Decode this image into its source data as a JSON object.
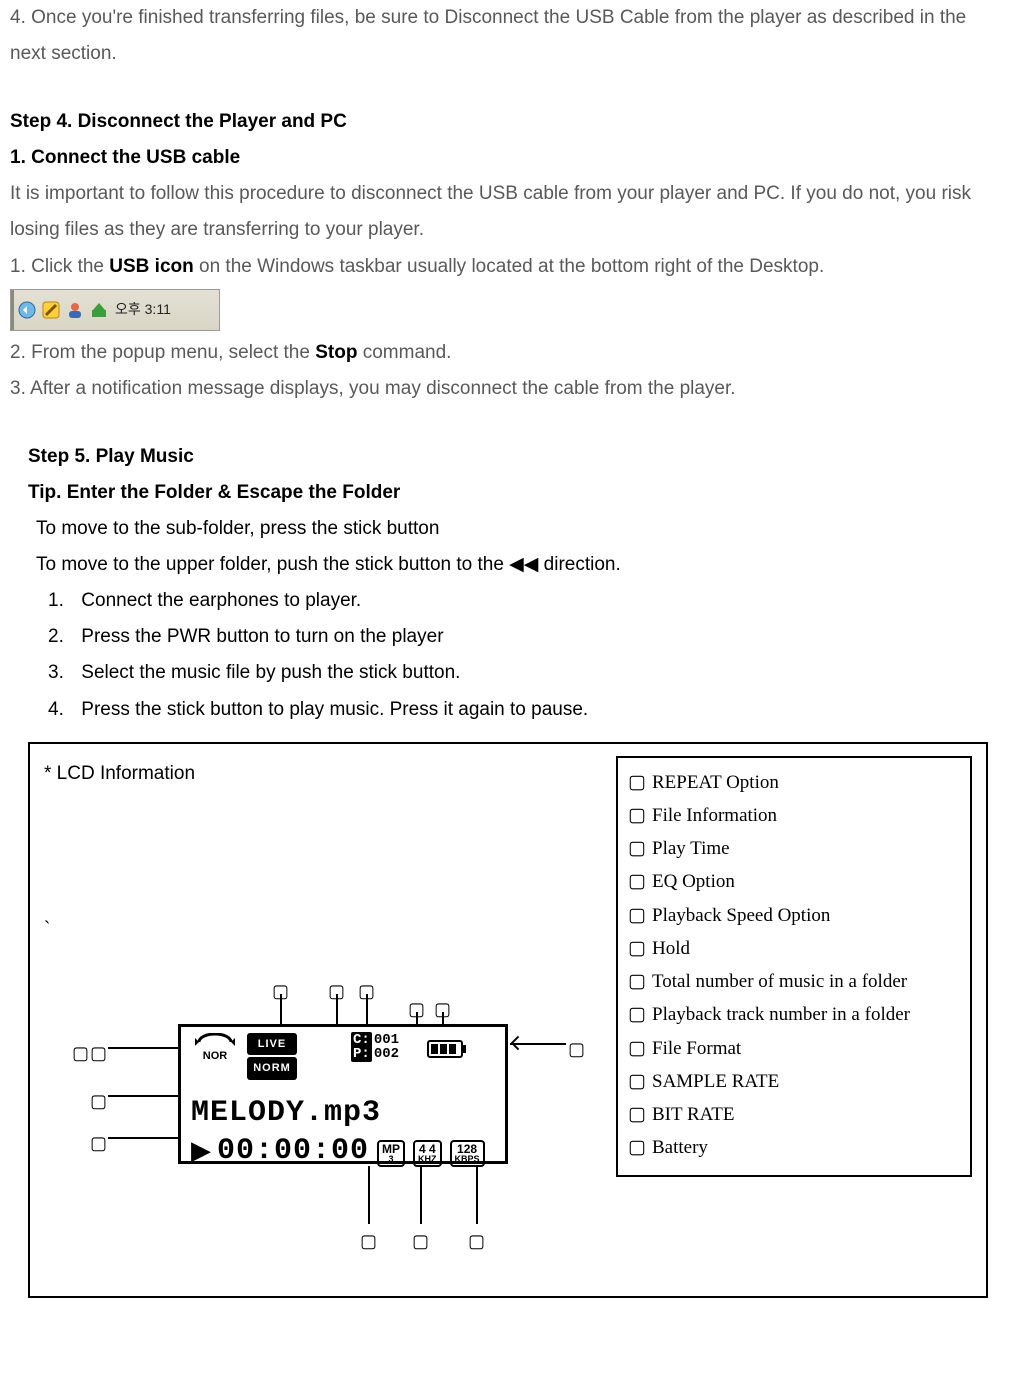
{
  "para4": "4. Once you're finished transferring files, be sure to Disconnect the USB Cable from the player as described in the next section.",
  "step4_heading": "Step 4. Disconnect the Player and PC",
  "step4_sub1": "1. Connect the USB cable",
  "step4_p1": "It is important to follow this procedure to disconnect the USB cable from your player and PC. If you do not, you risk losing files as they are transferring to your player.",
  "step4_l1a": "1. Click the ",
  "step4_l1b": "USB icon",
  "step4_l1c": " on the Windows taskbar usually located at the bottom right of the Desktop.",
  "taskbar_time": "오후 3:11",
  "step4_l2a": "2. From the popup menu, select the ",
  "step4_l2b": "Stop",
  "step4_l2c": " command.",
  "step4_l3": "3. After a notification message displays, you may disconnect the cable from the player.",
  "step5_heading": "Step 5. Play Music",
  "step5_tip": "Tip. Enter the Folder & Escape the Folder",
  "step5_p1": "To move to the sub-folder, press the stick button",
  "step5_p2": "To move to the upper folder, push the stick button to the  ◀◀  direction.",
  "step5_ol": [
    "Connect the earphones to player.",
    "Press the PWR button to turn on the player",
    "Select the music file by push the stick button.",
    "Press the stick button to play music. Press it again to pause."
  ],
  "lcd_title": "* LCD Information",
  "lcd": {
    "repeat_label": "NOR",
    "eq1": "LIVE",
    "eq2": "NORM",
    "track_c": "001",
    "track_p": "002",
    "filename": "MELODY.mp3",
    "playtime": "00:00:00",
    "format_top": "MP",
    "format_bot": "3",
    "khz_top": "4 4",
    "khz_bot": "KHZ",
    "kbps_top": "128",
    "kbps_bot": "KBPS"
  },
  "legend": [
    "REPEAT Option",
    "File Information",
    "Play Time",
    "EQ Option",
    "Playback Speed Option",
    "Hold",
    "Total number of music in a folder",
    "Playback track number in a folder",
    "File Format",
    "SAMPLE RATE",
    "BIT RATE",
    "Battery"
  ],
  "callout_glyph": "▢"
}
